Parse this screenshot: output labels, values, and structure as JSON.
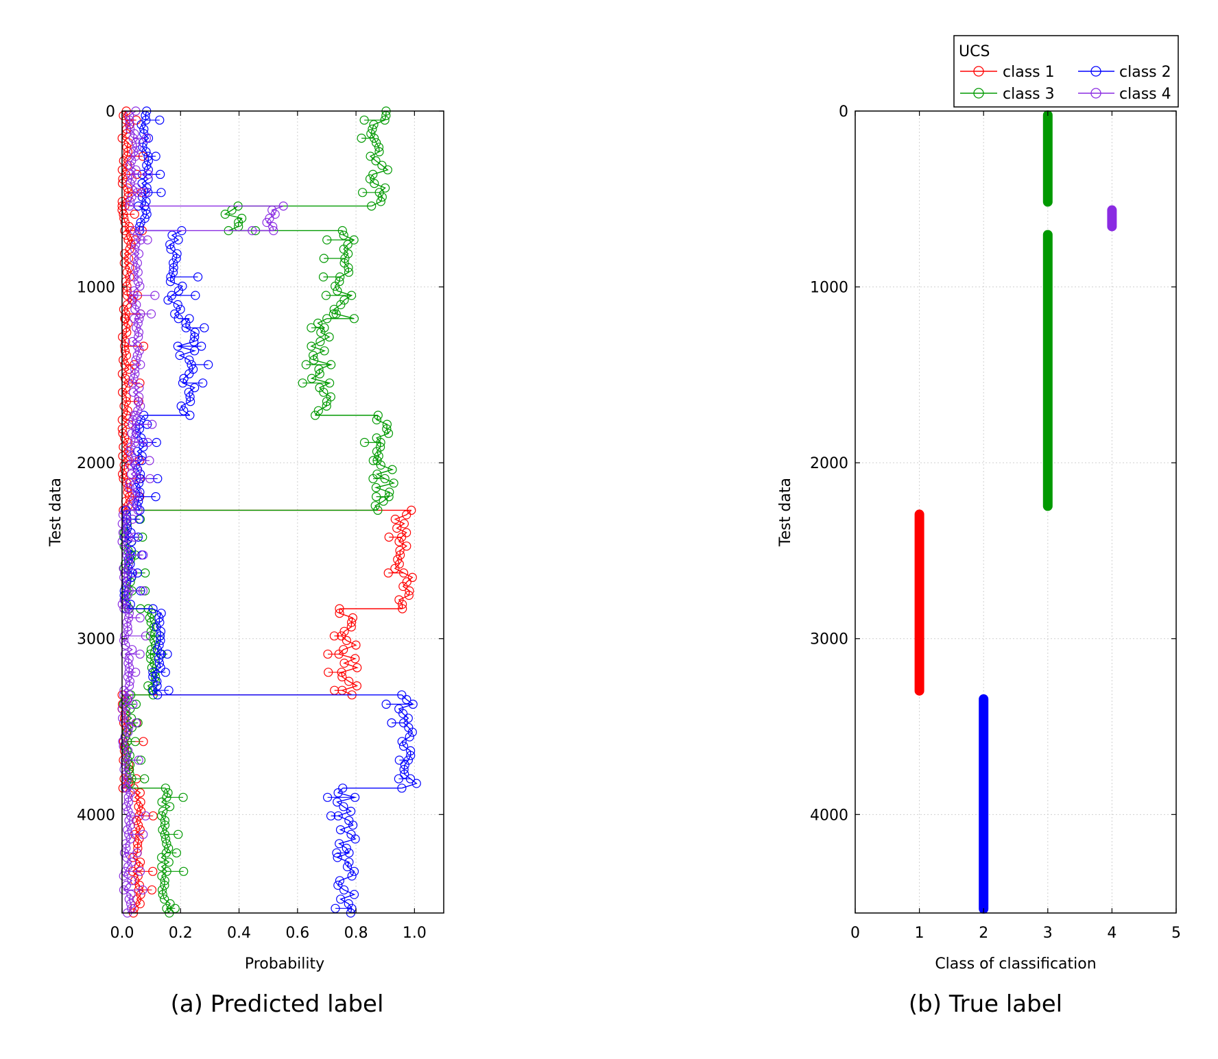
{
  "colors": {
    "class1": "#ff0000",
    "class2": "#0000ff",
    "class3": "#009900",
    "class4": "#8a2be2"
  },
  "legend": {
    "title": "UCS",
    "entries": [
      "class 1",
      "class 2",
      "class 3",
      "class 4"
    ]
  },
  "chart_data": [
    {
      "type": "scatter",
      "caption": "(a) Predicted label",
      "xlabel": "Probability",
      "ylabel": "Test data",
      "xlim": [
        0,
        1.1
      ],
      "ylim": [
        0,
        4560
      ],
      "y_inverted": true,
      "xticks": [
        "0.0",
        "0.2",
        "0.4",
        "0.6",
        "0.8",
        "1.0"
      ],
      "xtick_values": [
        0,
        0.2,
        0.4,
        0.6,
        0.8,
        1.0
      ],
      "yticks": [
        "0",
        "1000",
        "2000",
        "3000",
        "4000"
      ],
      "ytick_values": [
        0,
        1000,
        2000,
        3000,
        4000
      ],
      "segments": [
        {
          "y0": 0,
          "y1": 540,
          "class1": 0.01,
          "class2": 0.08,
          "class3": 0.88,
          "class4": 0.04
        },
        {
          "y0": 540,
          "y1": 680,
          "class1": 0.01,
          "class2": 0.07,
          "class3": 0.38,
          "class4": 0.52
        },
        {
          "y0": 680,
          "y1": 1180,
          "class1": 0.02,
          "class2": 0.18,
          "class3": 0.76,
          "class4": 0.05
        },
        {
          "y0": 1180,
          "y1": 1730,
          "class1": 0.01,
          "class2": 0.22,
          "class3": 0.68,
          "class4": 0.05
        },
        {
          "y0": 1730,
          "y1": 2270,
          "class1": 0.01,
          "class2": 0.06,
          "class3": 0.9,
          "class4": 0.04
        },
        {
          "y0": 2270,
          "y1": 2830,
          "class1": 0.96,
          "class2": 0.02,
          "class3": 0.02,
          "class4": 0.01
        },
        {
          "y0": 2830,
          "y1": 3320,
          "class1": 0.77,
          "class2": 0.12,
          "class3": 0.1,
          "class4": 0.02
        },
        {
          "y0": 3320,
          "y1": 3850,
          "class1": 0.01,
          "class2": 0.98,
          "class3": 0.02,
          "class4": 0.01
        },
        {
          "y0": 3850,
          "y1": 4560,
          "class1": 0.05,
          "class2": 0.77,
          "class3": 0.15,
          "class4": 0.02
        }
      ]
    },
    {
      "type": "scatter",
      "caption": "(b) True label",
      "xlabel": "Class of classification",
      "ylabel": "Test data",
      "xlim": [
        0,
        5
      ],
      "ylim": [
        0,
        4560
      ],
      "y_inverted": true,
      "xticks": [
        "0",
        "1",
        "2",
        "3",
        "4",
        "5"
      ],
      "xtick_values": [
        0,
        1,
        2,
        3,
        4,
        5
      ],
      "yticks": [
        "0",
        "1000",
        "2000",
        "3000",
        "4000"
      ],
      "ytick_values": [
        0,
        1000,
        2000,
        3000,
        4000
      ],
      "segments": [
        {
          "y0": 0,
          "y1": 540,
          "class": 3
        },
        {
          "y0": 540,
          "y1": 680,
          "class": 4
        },
        {
          "y0": 680,
          "y1": 2270,
          "class": 3
        },
        {
          "y0": 2270,
          "y1": 3320,
          "class": 1
        },
        {
          "y0": 3320,
          "y1": 4560,
          "class": 2
        }
      ]
    }
  ]
}
